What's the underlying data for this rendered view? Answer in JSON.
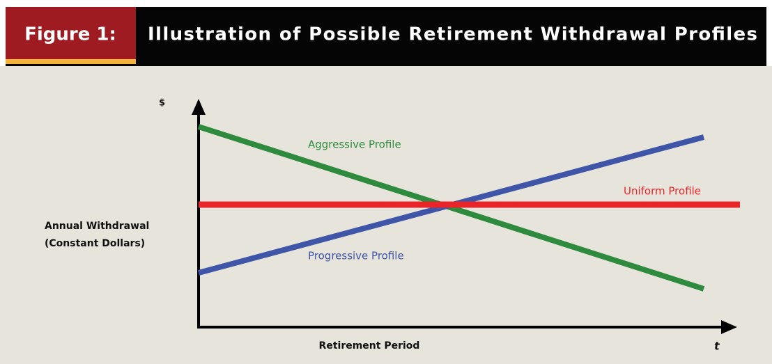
{
  "header": {
    "figure": "Figure 1:",
    "title": "Illustration of Possible Retirement Withdrawal Profiles"
  },
  "axes": {
    "y_symbol": "$",
    "y_label": [
      "Annual Withdrawal",
      "(Constant Dollars)"
    ],
    "x_label": "Retirement Period",
    "x_symbol": "t"
  },
  "profiles": [
    {
      "label": "Aggressive Profile",
      "color": "#2e8b3e"
    },
    {
      "label": "Uniform Profile",
      "color": "#e8262a"
    },
    {
      "label": "Progressive Profile",
      "color": "#3f55a8"
    }
  ]
}
